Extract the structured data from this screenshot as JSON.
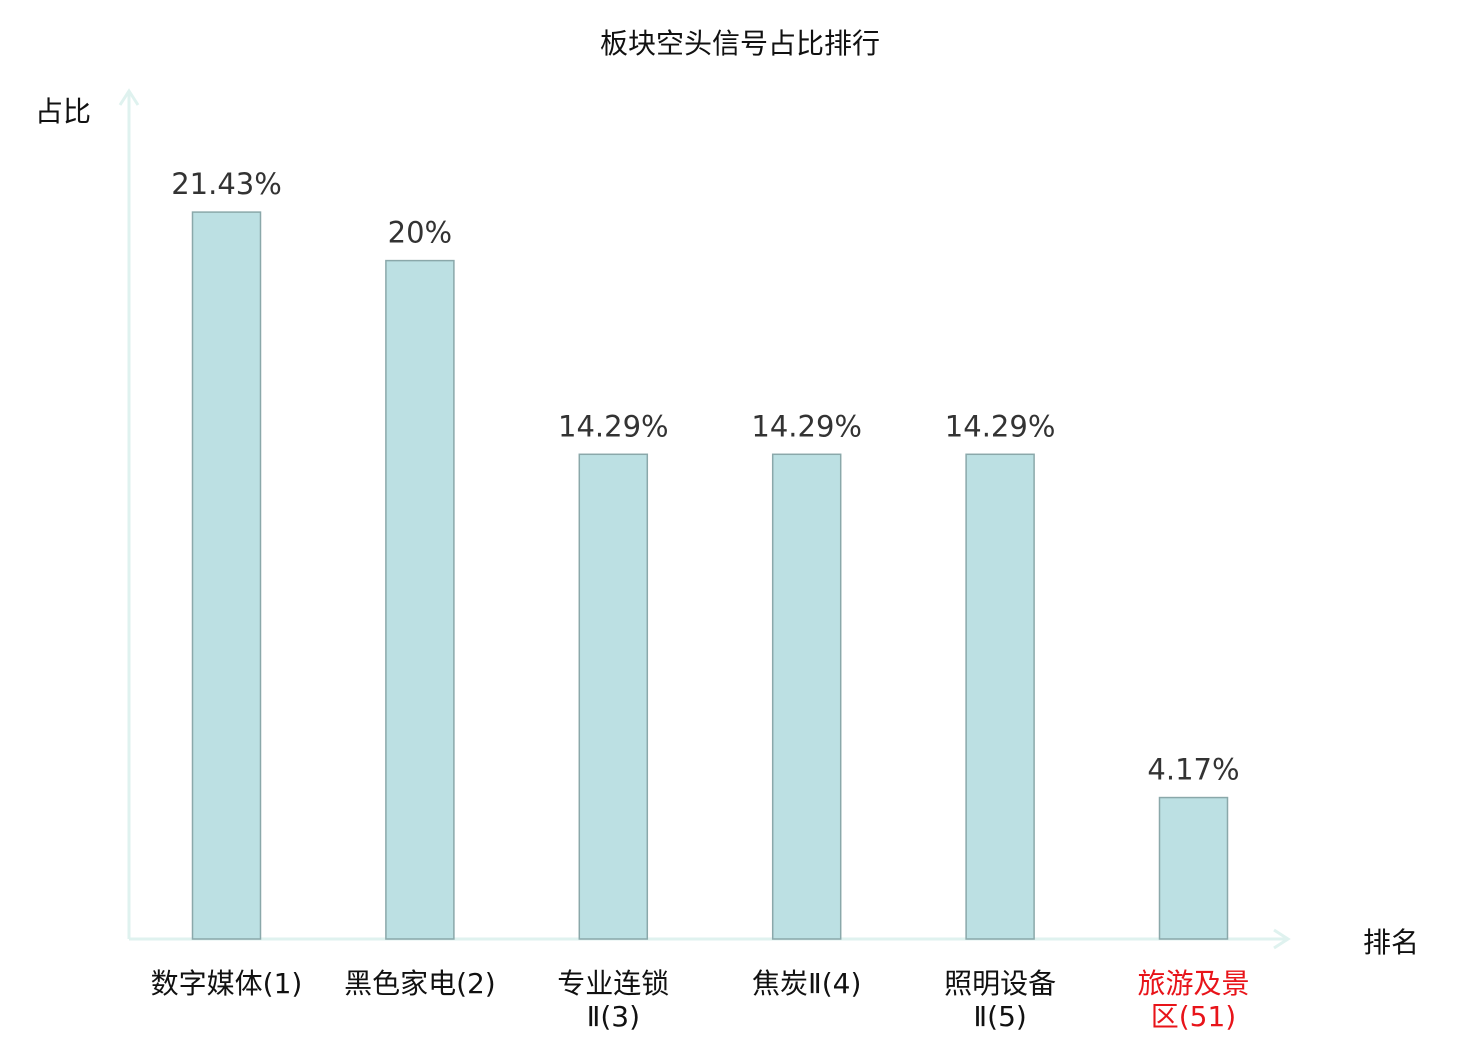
{
  "chart_data": {
    "type": "bar",
    "title": "板块空头信号占比排行",
    "ylabel": "占比",
    "xlabel": "排名",
    "ylim": [
      0,
      25
    ],
    "grid": false,
    "categories": [
      {
        "lines": [
          "数字媒体(1)"
        ],
        "highlight": false
      },
      {
        "lines": [
          "黑色家电(2)"
        ],
        "highlight": false
      },
      {
        "lines": [
          "专业连锁",
          "Ⅱ(3)"
        ],
        "highlight": false
      },
      {
        "lines": [
          "焦炭Ⅱ(4)"
        ],
        "highlight": false
      },
      {
        "lines": [
          "照明设备",
          "Ⅱ(5)"
        ],
        "highlight": false
      },
      {
        "lines": [
          "旅游及景",
          "区(51)"
        ],
        "highlight": true
      }
    ],
    "values": [
      21.43,
      20,
      14.29,
      14.29,
      14.29,
      4.17
    ],
    "data_labels": [
      "21.43%",
      "20%",
      "14.29%",
      "14.29%",
      "14.29%",
      "4.17%"
    ],
    "colors": {
      "bar_fill": "#bce0e3",
      "bar_stroke": "#8aa8aa",
      "axis": "#dff2ef",
      "text": "#333333",
      "highlight": "#e8141a"
    }
  }
}
